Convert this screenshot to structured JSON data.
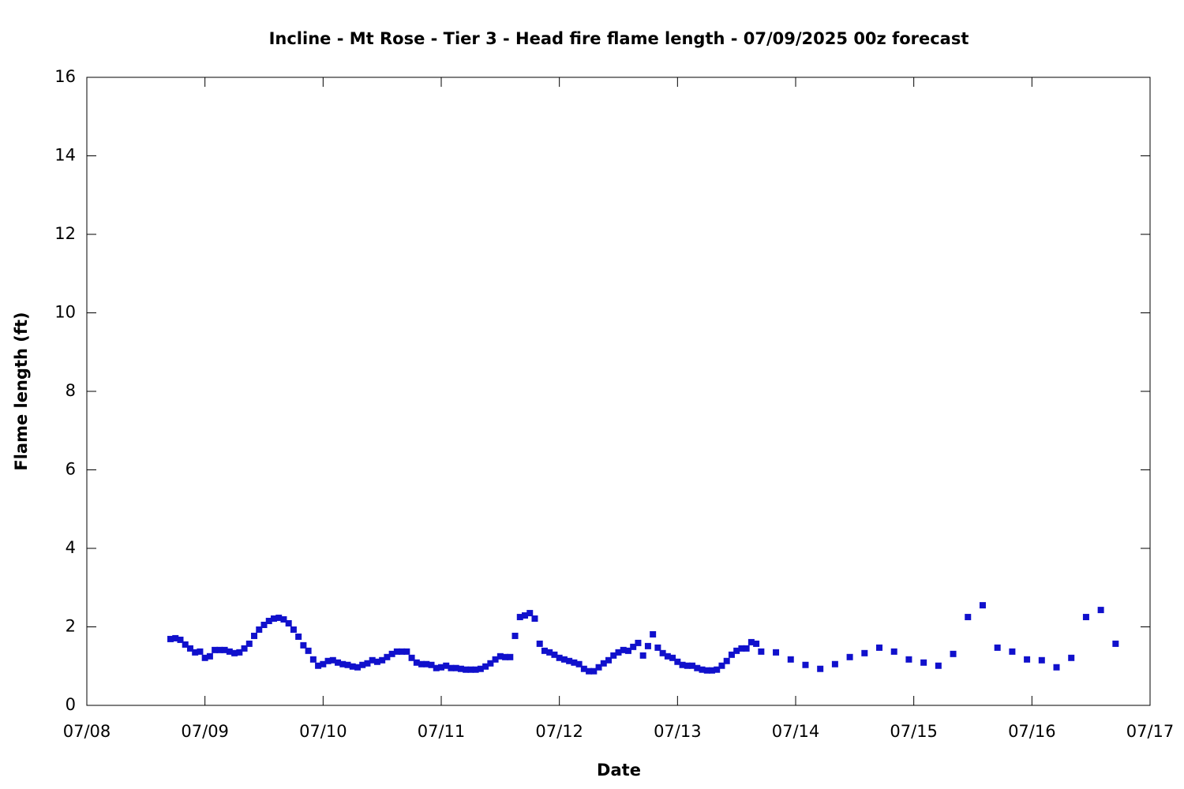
{
  "chart_data": {
    "type": "scatter",
    "title": "Incline - Mt Rose - Tier 3 - Head fire flame length - 07/09/2025 00z forecast",
    "x_label": "Date",
    "y_label": "Flame length (ft)",
    "xlim": [
      0,
      216
    ],
    "xticks": [
      {
        "value": 0,
        "label": "07/08"
      },
      {
        "value": 24,
        "label": "07/09"
      },
      {
        "value": 48,
        "label": "07/10"
      },
      {
        "value": 72,
        "label": "07/11"
      },
      {
        "value": 96,
        "label": "07/12"
      },
      {
        "value": 120,
        "label": "07/13"
      },
      {
        "value": 144,
        "label": "07/14"
      },
      {
        "value": 168,
        "label": "07/15"
      },
      {
        "value": 192,
        "label": "07/16"
      },
      {
        "value": 216,
        "label": "07/17"
      }
    ],
    "ylim": [
      0,
      16
    ],
    "yticks": [
      0,
      2,
      4,
      6,
      8,
      10,
      12,
      14,
      16
    ],
    "grid": false,
    "color": "#1010cc",
    "x": [
      17,
      18,
      19,
      20,
      21,
      22,
      23,
      24,
      25,
      26,
      27,
      28,
      29,
      30,
      31,
      32,
      33,
      34,
      35,
      36,
      37,
      38,
      39,
      40,
      41,
      42,
      43,
      44,
      45,
      46,
      47,
      48,
      49,
      50,
      51,
      52,
      53,
      54,
      55,
      56,
      57,
      58,
      59,
      60,
      61,
      62,
      63,
      64,
      65,
      66,
      67,
      68,
      69,
      70,
      71,
      72,
      73,
      74,
      75,
      76,
      77,
      78,
      79,
      80,
      81,
      82,
      83,
      84,
      85,
      86,
      87,
      88,
      89,
      90,
      91,
      92,
      93,
      94,
      95,
      96,
      97,
      98,
      99,
      100,
      101,
      102,
      103,
      104,
      105,
      106,
      107,
      108,
      109,
      110,
      111,
      112,
      113,
      114,
      115,
      116,
      117,
      118,
      119,
      120,
      121,
      122,
      123,
      124,
      125,
      126,
      127,
      128,
      129,
      130,
      131,
      132,
      133,
      134,
      135,
      136,
      137,
      140,
      143,
      146,
      149,
      152,
      155,
      158,
      161,
      164,
      167,
      170,
      173,
      176,
      179,
      182,
      185,
      188,
      191,
      194,
      197,
      200,
      203,
      206,
      209
    ],
    "values": [
      1.69,
      1.71,
      1.67,
      1.55,
      1.45,
      1.35,
      1.37,
      1.21,
      1.25,
      1.41,
      1.41,
      1.41,
      1.37,
      1.33,
      1.35,
      1.45,
      1.57,
      1.77,
      1.93,
      2.05,
      2.15,
      2.21,
      2.23,
      2.19,
      2.09,
      1.93,
      1.75,
      1.53,
      1.39,
      1.17,
      1.01,
      1.05,
      1.13,
      1.15,
      1.09,
      1.05,
      1.03,
      0.99,
      0.97,
      1.03,
      1.07,
      1.15,
      1.11,
      1.15,
      1.23,
      1.31,
      1.37,
      1.37,
      1.37,
      1.21,
      1.09,
      1.05,
      1.05,
      1.03,
      0.95,
      0.97,
      1.01,
      0.95,
      0.95,
      0.93,
      0.91,
      0.91,
      0.91,
      0.93,
      0.99,
      1.07,
      1.17,
      1.25,
      1.23,
      1.23,
      1.77,
      2.25,
      2.29,
      2.35,
      2.21,
      1.57,
      1.39,
      1.35,
      1.29,
      1.21,
      1.17,
      1.13,
      1.09,
      1.05,
      0.93,
      0.87,
      0.87,
      0.97,
      1.07,
      1.15,
      1.27,
      1.35,
      1.41,
      1.39,
      1.49,
      1.59,
      1.27,
      1.51,
      1.81,
      1.47,
      1.33,
      1.25,
      1.21,
      1.11,
      1.03,
      1.01,
      1.01,
      0.95,
      0.91,
      0.89,
      0.89,
      0.91,
      1.01,
      1.13,
      1.29,
      1.39,
      1.45,
      1.45,
      1.61,
      1.57,
      1.37,
      1.35,
      1.17,
      1.03,
      0.93,
      1.05,
      1.23,
      1.33,
      1.47,
      1.37,
      1.17,
      1.09,
      1.01,
      1.31,
      2.25,
      2.55,
      1.47,
      1.37,
      1.17,
      1.15,
      0.97,
      1.21,
      2.25,
      2.43,
      1.57
    ]
  }
}
